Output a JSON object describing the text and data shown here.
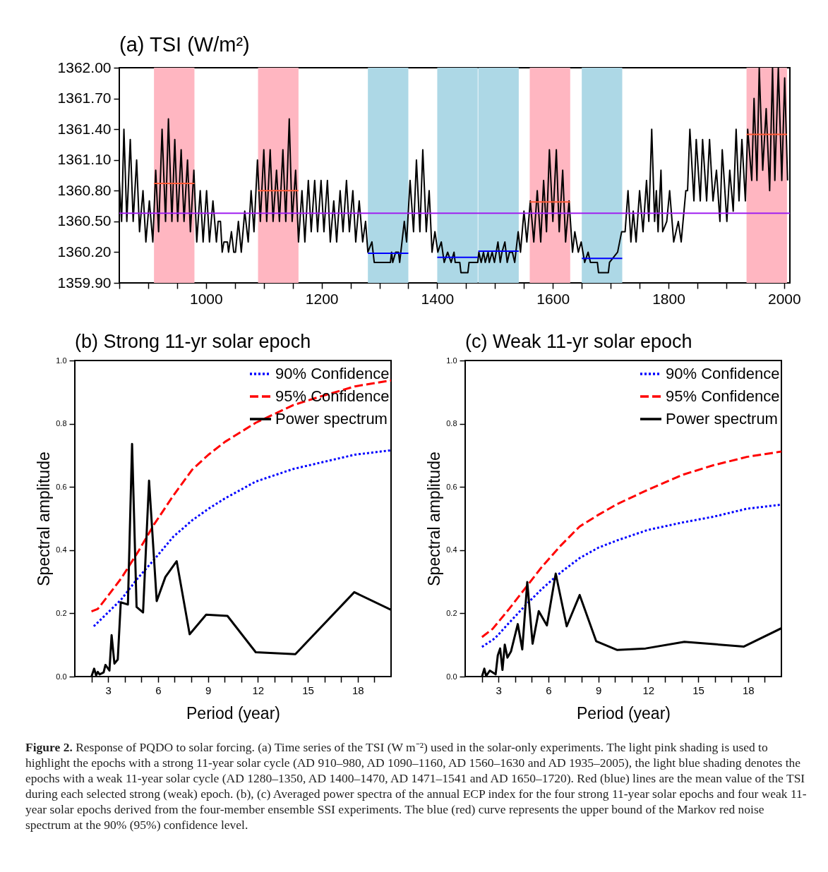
{
  "chart_data": [
    {
      "type": "line",
      "title": "(a) TSI (W/m²)",
      "xlim": [
        850,
        2010
      ],
      "ylim": [
        1359.9,
        1362.0
      ],
      "xticks": [
        {
          "value": 850,
          "label": null
        },
        {
          "value": 900,
          "label": null
        },
        {
          "value": 950,
          "label": null
        },
        1000,
        {
          "value": 1050,
          "label": null
        },
        {
          "value": 1100,
          "label": null
        },
        {
          "value": 1150,
          "label": null
        },
        1200,
        {
          "value": 1250,
          "label": null
        },
        {
          "value": 1300,
          "label": null
        },
        {
          "value": 1350,
          "label": null
        },
        1400,
        {
          "value": 1450,
          "label": null
        },
        {
          "value": 1500,
          "label": null
        },
        {
          "value": 1550,
          "label": null
        },
        1600,
        {
          "value": 1650,
          "label": null
        },
        {
          "value": 1700,
          "label": null
        },
        {
          "value": 1750,
          "label": null
        },
        1800,
        {
          "value": 1850,
          "label": null
        },
        {
          "value": 1900,
          "label": null
        },
        {
          "value": 1950,
          "label": null
        },
        2000
      ],
      "yticks": [
        {
          "value": 1359.9,
          "label": "1359.90"
        },
        {
          "value": 1360.2,
          "label": "1360.20"
        },
        {
          "value": 1360.5,
          "label": "1360.50"
        },
        {
          "value": 1360.8,
          "label": "1360.80"
        },
        {
          "value": 1361.1,
          "label": "1361.10"
        },
        {
          "value": 1361.4,
          "label": "1361.40"
        },
        {
          "value": 1361.7,
          "label": "1361.70"
        },
        {
          "value": 1362.0,
          "label": "1362.00"
        }
      ],
      "bands": [
        {
          "axis": "x",
          "from": 910,
          "to": 980,
          "color": "#ffb6c1"
        },
        {
          "axis": "x",
          "from": 1090,
          "to": 1160,
          "color": "#ffb6c1"
        },
        {
          "axis": "x",
          "from": 1560,
          "to": 1630,
          "color": "#ffb6c1"
        },
        {
          "axis": "x",
          "from": 1935,
          "to": 2005,
          "color": "#ffb6c1"
        },
        {
          "axis": "x",
          "from": 1280,
          "to": 1350,
          "color": "#add8e6"
        },
        {
          "axis": "x",
          "from": 1400,
          "to": 1470,
          "color": "#add8e6"
        },
        {
          "axis": "x",
          "from": 1471,
          "to": 1541,
          "color": "#add8e6"
        },
        {
          "axis": "x",
          "from": 1650,
          "to": 1720,
          "color": "#add8e6"
        }
      ],
      "ref_lines": [
        {
          "axis": "y",
          "value": 1360.58,
          "color": "#a020f0"
        }
      ],
      "series": [
        {
          "color": "#000000",
          "x": [
            850,
            854,
            858,
            863,
            869,
            874,
            880,
            885,
            891,
            896,
            902,
            908,
            913,
            918,
            924,
            930,
            935,
            941,
            946,
            951,
            957,
            962,
            968,
            973,
            979,
            984,
            990,
            995,
            1001,
            1006,
            1012,
            1018,
            1021,
            1025,
            1028,
            1031,
            1037,
            1039,
            1044,
            1048,
            1051,
            1056,
            1061,
            1067,
            1073,
            1078,
            1083,
            1089,
            1094,
            1100,
            1105,
            1111,
            1116,
            1122,
            1127,
            1133,
            1138,
            1144,
            1149,
            1155,
            1160,
            1166,
            1171,
            1177,
            1182,
            1188,
            1193,
            1199,
            1204,
            1210,
            1215,
            1221,
            1226,
            1232,
            1237,
            1243,
            1248,
            1254,
            1259,
            1265,
            1271,
            1276,
            1280,
            1287,
            1291,
            1319,
            1321,
            1323,
            1328,
            1333,
            1335,
            1337,
            1343,
            1347,
            1353,
            1359,
            1364,
            1370,
            1375,
            1381,
            1386,
            1391,
            1396,
            1401,
            1407,
            1412,
            1418,
            1424,
            1429,
            1431,
            1439,
            1441,
            1453,
            1455,
            1470,
            1472,
            1476,
            1480,
            1483,
            1488,
            1490,
            1495,
            1499,
            1505,
            1509,
            1512,
            1517,
            1521,
            1525,
            1530,
            1534,
            1540,
            1544,
            1550,
            1555,
            1561,
            1567,
            1573,
            1579,
            1584,
            1589,
            1594,
            1600,
            1606,
            1611,
            1617,
            1622,
            1628,
            1634,
            1638,
            1644,
            1649,
            1655,
            1661,
            1665,
            1677,
            1679,
            1696,
            1698,
            1712,
            1719,
            1725,
            1730,
            1735,
            1739,
            1744,
            1750,
            1756,
            1762,
            1766,
            1771,
            1776,
            1779,
            1782,
            1787,
            1790,
            1797,
            1802,
            1809,
            1817,
            1822,
            1830,
            1833,
            1837,
            1844,
            1848,
            1855,
            1859,
            1866,
            1871,
            1877,
            1883,
            1889,
            1893,
            1901,
            1906,
            1912,
            1917,
            1922,
            1927,
            1933,
            1937,
            1944,
            1948,
            1953,
            1957,
            1963,
            1969,
            1975,
            1980,
            1984,
            1990,
            1996,
            2001,
            2006
          ],
          "values": [
            1360.9,
            1360.5,
            1361.4,
            1360.5,
            1361.3,
            1360.5,
            1361.1,
            1360.4,
            1360.8,
            1360.3,
            1360.7,
            1360.3,
            1361.0,
            1360.4,
            1361.4,
            1360.5,
            1361.5,
            1360.5,
            1361.3,
            1360.5,
            1361.2,
            1360.5,
            1361.1,
            1360.4,
            1361.0,
            1360.3,
            1360.8,
            1360.3,
            1360.8,
            1360.3,
            1360.7,
            1360.3,
            1360.5,
            1360.5,
            1360.2,
            1360.3,
            1360.3,
            1360.2,
            1360.4,
            1360.2,
            1360.2,
            1360.5,
            1360.2,
            1360.6,
            1360.3,
            1360.8,
            1360.4,
            1361.1,
            1360.5,
            1361.2,
            1360.5,
            1361.2,
            1360.5,
            1361.0,
            1360.5,
            1361.2,
            1360.5,
            1361.5,
            1360.5,
            1361.0,
            1360.3,
            1360.8,
            1360.3,
            1360.9,
            1360.4,
            1360.9,
            1360.4,
            1360.9,
            1360.4,
            1360.9,
            1360.3,
            1360.7,
            1360.3,
            1360.8,
            1360.4,
            1360.9,
            1360.4,
            1360.8,
            1360.3,
            1360.7,
            1360.3,
            1360.5,
            1360.2,
            1360.3,
            1360.1,
            1360.1,
            1360.2,
            1360.1,
            1360.2,
            1360.2,
            1360.1,
            1360.2,
            1360.5,
            1360.3,
            1360.9,
            1360.4,
            1361.1,
            1360.4,
            1361.2,
            1360.4,
            1360.8,
            1360.2,
            1360.4,
            1360.2,
            1360.3,
            1360.1,
            1360.2,
            1360.1,
            1360.2,
            1360.1,
            1360.1,
            1360.0,
            1360.0,
            1360.1,
            1360.1,
            1360.2,
            1360.1,
            1360.2,
            1360.1,
            1360.2,
            1360.1,
            1360.2,
            1360.1,
            1360.3,
            1360.1,
            1360.2,
            1360.3,
            1360.1,
            1360.2,
            1360.2,
            1360.1,
            1360.4,
            1360.2,
            1360.6,
            1360.3,
            1360.7,
            1360.3,
            1360.8,
            1360.3,
            1360.9,
            1360.4,
            1361.2,
            1360.5,
            1361.2,
            1360.4,
            1361.0,
            1360.3,
            1360.7,
            1360.2,
            1360.4,
            1360.2,
            1360.3,
            1360.1,
            1360.2,
            1360.1,
            1360.1,
            1360.0,
            1360.0,
            1360.1,
            1360.2,
            1360.4,
            1360.4,
            1360.8,
            1360.3,
            1360.6,
            1360.3,
            1360.8,
            1360.4,
            1360.9,
            1360.5,
            1361.4,
            1360.5,
            1360.8,
            1360.4,
            1361.0,
            1360.4,
            1360.5,
            1360.8,
            1360.3,
            1360.5,
            1360.3,
            1360.8,
            1360.8,
            1361.4,
            1360.7,
            1361.3,
            1360.7,
            1361.3,
            1360.7,
            1361.3,
            1360.7,
            1361.0,
            1360.5,
            1361.2,
            1360.5,
            1361.0,
            1360.6,
            1361.4,
            1360.7,
            1361.3,
            1360.7,
            1361.4,
            1360.9,
            1361.7,
            1360.9,
            1362.0,
            1361.0,
            1361.6,
            1360.8,
            1362.0,
            1360.9,
            1362.0,
            1360.9,
            1361.9,
            1360.9
          ]
        },
        {
          "color": "#ff5a36",
          "x": [
            910,
            980
          ],
          "values": [
            1360.87,
            1360.87
          ]
        },
        {
          "color": "#ff5a36",
          "x": [
            1090,
            1160
          ],
          "values": [
            1360.8,
            1360.8
          ]
        },
        {
          "color": "#ff5a36",
          "x": [
            1560,
            1630
          ],
          "values": [
            1360.69,
            1360.69
          ]
        },
        {
          "color": "#ff5a36",
          "x": [
            1935,
            2005
          ],
          "values": [
            1361.35,
            1361.35
          ]
        },
        {
          "color": "#0000ff",
          "x": [
            1280,
            1350
          ],
          "values": [
            1360.19,
            1360.19
          ]
        },
        {
          "color": "#0000ff",
          "x": [
            1400,
            1470
          ],
          "values": [
            1360.15,
            1360.15
          ]
        },
        {
          "color": "#0000ff",
          "x": [
            1471,
            1541
          ],
          "values": [
            1360.21,
            1360.21
          ]
        },
        {
          "color": "#0000ff",
          "x": [
            1650,
            1720
          ],
          "values": [
            1360.14,
            1360.14
          ]
        }
      ]
    },
    {
      "type": "line",
      "title": "(b) Strong 11-yr solar epoch",
      "xlabel": "Period (year)",
      "ylabel": "Spectral amplitude",
      "xlim": [
        1,
        20
      ],
      "ylim": [
        0,
        1
      ],
      "xticks": [
        {
          "value": 2,
          "label": null
        },
        3,
        {
          "value": 4,
          "label": null
        },
        {
          "value": 5,
          "label": null
        },
        6,
        {
          "value": 7,
          "label": null
        },
        {
          "value": 8,
          "label": null
        },
        9,
        {
          "value": 10,
          "label": null
        },
        {
          "value": 11,
          "label": null
        },
        12,
        {
          "value": 13,
          "label": null
        },
        {
          "value": 14,
          "label": null
        },
        15,
        {
          "value": 16,
          "label": null
        },
        {
          "value": 17,
          "label": null
        },
        18,
        {
          "value": 19,
          "label": null
        }
      ],
      "yticks": [
        {
          "value": 0,
          "label": "0.0"
        },
        0.2,
        0.4,
        0.6,
        0.8,
        {
          "value": 1,
          "label": "1.0"
        }
      ],
      "legend": "top right",
      "series": [
        {
          "name": "90% Confidence",
          "color": "#0000ff",
          "line_style": "dotted",
          "x": [
            2.14,
            2.94,
            3.79,
            4.78,
            5.78,
            6.91,
            8.04,
            9.03,
            10.03,
            11.87,
            14.13,
            15.69,
            17.82,
            20
          ],
          "values": [
            0.159,
            0.2,
            0.244,
            0.311,
            0.371,
            0.442,
            0.494,
            0.531,
            0.564,
            0.617,
            0.657,
            0.676,
            0.702,
            0.716
          ]
        },
        {
          "name": "95% Confidence",
          "color": "#ff0000",
          "line_style": "dashed",
          "x": [
            2,
            2.38,
            2.94,
            3.79,
            4.78,
            5.78,
            6.91,
            8.04,
            9.03,
            10.03,
            11.87,
            14.13,
            15.69,
            17.82,
            20
          ],
          "values": [
            0.206,
            0.214,
            0.252,
            0.311,
            0.393,
            0.483,
            0.572,
            0.654,
            0.702,
            0.743,
            0.803,
            0.859,
            0.885,
            0.918,
            0.937
          ]
        },
        {
          "name": "Power spectrum",
          "color": "#000000",
          "line_style": "solid",
          "x": [
            2,
            2.16,
            2.28,
            2.38,
            2.49,
            2.73,
            2.84,
            3.08,
            3.21,
            3.38,
            3.58,
            3.76,
            4.19,
            4.44,
            4.71,
            5.1,
            5.46,
            5.92,
            6.44,
            7.12,
            7.9,
            8.89,
            10.17,
            11.87,
            14.25,
            17.79,
            20
          ],
          "values": [
            0,
            0.025,
            0.004,
            0.015,
            0.007,
            0.013,
            0.037,
            0.019,
            0.131,
            0.041,
            0.054,
            0.235,
            0.228,
            0.736,
            0.22,
            0.203,
            0.62,
            0.239,
            0.315,
            0.365,
            0.134,
            0.196,
            0.192,
            0.077,
            0.071,
            0.267,
            0.211
          ]
        }
      ]
    },
    {
      "type": "line",
      "title": "(c) Weak 11-yr solar epoch",
      "xlabel": "Period (year)",
      "ylabel": "Spectral amplitude",
      "xlim": [
        1,
        20
      ],
      "ylim": [
        0,
        1
      ],
      "xticks": [
        {
          "value": 2,
          "label": null
        },
        3,
        {
          "value": 4,
          "label": null
        },
        {
          "value": 5,
          "label": null
        },
        6,
        {
          "value": 7,
          "label": null
        },
        {
          "value": 8,
          "label": null
        },
        9,
        {
          "value": 10,
          "label": null
        },
        {
          "value": 11,
          "label": null
        },
        12,
        {
          "value": 13,
          "label": null
        },
        {
          "value": 14,
          "label": null
        },
        15,
        {
          "value": 16,
          "label": null
        },
        {
          "value": 17,
          "label": null
        },
        18,
        {
          "value": 19,
          "label": null
        }
      ],
      "yticks": [
        {
          "value": 0,
          "label": "0.0"
        },
        0.2,
        0.4,
        0.6,
        0.8,
        {
          "value": 1,
          "label": "1.0"
        }
      ],
      "legend": "top right",
      "annotations": [
        "Figure 2.",
        "Response of PQDO to solar forcing. (a) Time series of the TSI (W m⁻²) used in the solar-only experiments. The light pink shading is used to highlight the epochs with a strong 11-year solar cycle (AD 910–980, AD 1090–1160, AD 1560–1630 and AD 1935–2005), the light blue shading denotes the epochs with a weak 11-year solar cycle (AD 1280–1350, AD 1400–1470, AD 1471–1541 and AD 1650–1720). Red (blue) lines are the mean value of the TSI during each selected strong (weak) epoch. (b), (c) Averaged power spectra of the annual ECP index for the four strong 11-year solar epochs and four weak 11-year solar epochs derived from the four-member ensemble SSI experiments. The blue (red) curve represents the upper bound of the Markov red noise spectrum at the 90% (95%) confidence level."
      ],
      "series": [
        {
          "name": "90% Confidence",
          "color": "#0000ff",
          "line_style": "dotted",
          "x": [
            2.01,
            2.79,
            3.64,
            4.63,
            5.62,
            6.75,
            7.88,
            9.01,
            10.14,
            11.98,
            14.1,
            15.94,
            17.92,
            20
          ],
          "values": [
            0.094,
            0.121,
            0.17,
            0.226,
            0.278,
            0.33,
            0.375,
            0.408,
            0.431,
            0.464,
            0.488,
            0.506,
            0.531,
            0.544
          ]
        },
        {
          "name": "95% Confidence",
          "color": "#ff0000",
          "line_style": "dashed",
          "x": [
            2.01,
            2.65,
            3.64,
            4.63,
            5.62,
            6.75,
            7.88,
            9.01,
            10.14,
            11.98,
            14.1,
            15.94,
            17.92,
            20
          ],
          "values": [
            0.125,
            0.151,
            0.214,
            0.281,
            0.348,
            0.415,
            0.475,
            0.512,
            0.546,
            0.591,
            0.639,
            0.669,
            0.695,
            0.712
          ]
        },
        {
          "name": "Power spectrum",
          "color": "#000000",
          "line_style": "solid",
          "x": [
            2.01,
            2.15,
            2.26,
            2.48,
            2.83,
            2.96,
            3.1,
            3.24,
            3.38,
            3.54,
            3.75,
            4.16,
            4.43,
            4.73,
            5.05,
            5.42,
            5.91,
            6.44,
            7.1,
            7.88,
            8.87,
            10.14,
            11.84,
            14.17,
            17.75,
            20
          ],
          "values": [
            0,
            0.025,
            0.002,
            0.019,
            0.007,
            0.067,
            0.089,
            0.021,
            0.101,
            0.06,
            0.079,
            0.166,
            0.086,
            0.299,
            0.104,
            0.207,
            0.162,
            0.326,
            0.159,
            0.258,
            0.112,
            0.084,
            0.089,
            0.11,
            0.095,
            0.153
          ]
        }
      ]
    }
  ]
}
